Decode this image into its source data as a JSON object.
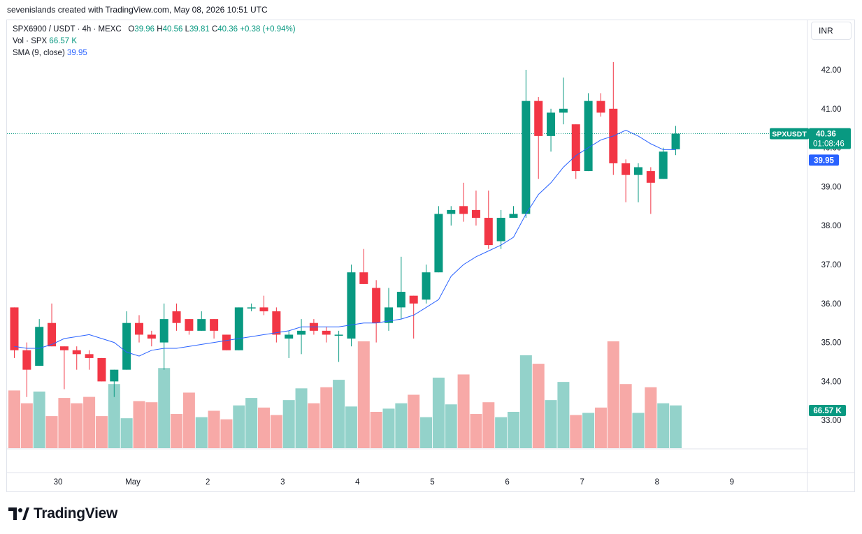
{
  "header": {
    "credit": "sevenislands created with TradingView.com, May 08, 2026 10:51 UTC"
  },
  "legend": {
    "symbol": "SPX6900 / USDT · 4h · MEXC",
    "o_label": "O",
    "o_value": "39.96",
    "h_label": "H",
    "h_value": "40.56",
    "l_label": "L",
    "l_value": "39.81",
    "c_label": "C",
    "c_value": "40.36",
    "change": "+0.38 (+0.94%)",
    "vol_label": "Vol · SPX",
    "vol_value": "66.57 K",
    "sma_label": "SMA (9, close)",
    "sma_value": "39.95"
  },
  "currency": "INR",
  "brand": {
    "name": "TradingView"
  },
  "colors": {
    "up": "#089981",
    "down": "#f23645",
    "up_vol": "#93d2ca",
    "down_vol": "#f7a9a7",
    "sma": "#2962ff"
  },
  "chart_data": {
    "type": "candlestick",
    "interval": "4h",
    "y_ticks": [
      "42.00",
      "41.00",
      "40.00",
      "39.00",
      "38.00",
      "37.00",
      "36.00",
      "35.00",
      "34.00",
      "33.00"
    ],
    "y_tick_values": [
      42,
      41,
      40,
      39,
      38,
      37,
      36,
      35,
      34,
      33
    ],
    "x_ticks": [
      {
        "label": "30",
        "index": 3.5
      },
      {
        "label": "May",
        "index": 9.5
      },
      {
        "label": "2",
        "index": 15.5
      },
      {
        "label": "3",
        "index": 21.5
      },
      {
        "label": "4",
        "index": 27.5
      },
      {
        "label": "5",
        "index": 33.5
      },
      {
        "label": "6",
        "index": 39.5
      },
      {
        "label": "7",
        "index": 45.5
      },
      {
        "label": "8",
        "index": 51.5
      },
      {
        "label": "9",
        "index": 57.5
      }
    ],
    "ohlc": [
      [
        35.9,
        35.9,
        34.6,
        34.8
      ],
      [
        34.8,
        35.0,
        33.6,
        34.3
      ],
      [
        34.4,
        35.6,
        34.4,
        35.4
      ],
      [
        35.5,
        36.0,
        34.9,
        34.9
      ],
      [
        34.9,
        34.9,
        33.8,
        34.8
      ],
      [
        34.8,
        34.9,
        34.3,
        34.7
      ],
      [
        34.7,
        34.8,
        34.3,
        34.6
      ],
      [
        34.6,
        34.6,
        34.0,
        34.0
      ],
      [
        34.0,
        34.3,
        33.6,
        34.3
      ],
      [
        34.3,
        35.8,
        34.3,
        35.5
      ],
      [
        35.5,
        35.7,
        35.0,
        35.2
      ],
      [
        35.2,
        35.3,
        34.9,
        35.1
      ],
      [
        35.0,
        36.0,
        34.3,
        35.6
      ],
      [
        35.8,
        36.0,
        35.3,
        35.5
      ],
      [
        35.6,
        35.6,
        35.2,
        35.3
      ],
      [
        35.3,
        35.8,
        35.3,
        35.6
      ],
      [
        35.6,
        35.6,
        35.1,
        35.3
      ],
      [
        35.2,
        35.2,
        34.8,
        34.8
      ],
      [
        34.8,
        35.9,
        34.8,
        35.9
      ],
      [
        35.9,
        36.0,
        35.8,
        35.9
      ],
      [
        35.9,
        36.2,
        35.7,
        35.8
      ],
      [
        35.8,
        35.9,
        35.0,
        35.2
      ],
      [
        35.1,
        35.3,
        34.6,
        35.2
      ],
      [
        35.2,
        35.6,
        34.7,
        35.3
      ],
      [
        35.5,
        35.6,
        35.2,
        35.3
      ],
      [
        35.3,
        35.4,
        35.0,
        35.2
      ],
      [
        35.2,
        35.3,
        34.5,
        35.2
      ],
      [
        35.1,
        37.0,
        34.9,
        36.8
      ],
      [
        36.8,
        37.4,
        36.5,
        36.5
      ],
      [
        36.4,
        36.6,
        35.0,
        35.5
      ],
      [
        35.5,
        36.4,
        35.3,
        35.9
      ],
      [
        35.9,
        37.2,
        35.6,
        36.3
      ],
      [
        36.2,
        36.2,
        35.1,
        36.0
      ],
      [
        36.1,
        37.0,
        36.0,
        36.8
      ],
      [
        36.8,
        38.5,
        36.8,
        38.3
      ],
      [
        38.3,
        38.5,
        38.0,
        38.4
      ],
      [
        38.5,
        39.1,
        38.1,
        38.3
      ],
      [
        38.4,
        38.9,
        38.0,
        38.2
      ],
      [
        38.2,
        38.9,
        37.4,
        37.5
      ],
      [
        37.6,
        38.4,
        37.4,
        38.2
      ],
      [
        38.2,
        38.5,
        38.2,
        38.3
      ],
      [
        38.3,
        42.0,
        38.2,
        41.2
      ],
      [
        41.2,
        41.3,
        39.2,
        40.3
      ],
      [
        40.3,
        41.0,
        39.9,
        40.9
      ],
      [
        40.9,
        41.8,
        40.6,
        41.0
      ],
      [
        40.6,
        40.6,
        39.2,
        39.4
      ],
      [
        39.4,
        41.4,
        39.4,
        41.2
      ],
      [
        41.2,
        41.4,
        40.8,
        40.9
      ],
      [
        41.0,
        42.2,
        39.3,
        39.6
      ],
      [
        39.6,
        39.7,
        38.6,
        39.3
      ],
      [
        39.3,
        39.6,
        38.6,
        39.5
      ],
      [
        39.4,
        39.5,
        38.3,
        39.1
      ],
      [
        39.2,
        40.0,
        39.2,
        39.9
      ],
      [
        39.96,
        40.56,
        39.81,
        40.36
      ]
    ],
    "volume_relative": [
      0.54,
      0.42,
      0.53,
      0.3,
      0.47,
      0.42,
      0.48,
      0.3,
      0.6,
      0.28,
      0.44,
      0.43,
      0.75,
      0.32,
      0.52,
      0.29,
      0.35,
      0.27,
      0.4,
      0.47,
      0.38,
      0.31,
      0.45,
      0.56,
      0.42,
      0.57,
      0.64,
      0.39,
      1.0,
      0.34,
      0.37,
      0.42,
      0.5,
      0.29,
      0.66,
      0.41,
      0.69,
      0.32,
      0.43,
      0.29,
      0.34,
      0.87,
      0.79,
      0.45,
      0.62,
      0.31,
      0.33,
      0.38,
      1.0,
      0.6,
      0.33,
      0.57,
      0.42,
      0.4
    ],
    "sma_9_close": [
      34.9,
      34.85,
      34.85,
      34.95,
      35.1,
      35.15,
      35.2,
      35.1,
      35.0,
      34.75,
      34.65,
      34.8,
      34.85,
      34.85,
      34.9,
      34.95,
      35.0,
      35.05,
      35.1,
      35.15,
      35.2,
      35.25,
      35.3,
      35.4,
      35.4,
      35.4,
      35.4,
      35.45,
      35.5,
      35.5,
      35.55,
      35.6,
      35.7,
      35.9,
      36.1,
      36.7,
      37.0,
      37.2,
      37.35,
      37.5,
      37.7,
      38.3,
      38.8,
      39.1,
      39.5,
      39.8,
      40.0,
      40.2,
      40.3,
      40.45,
      40.3,
      40.1,
      39.95,
      39.95
    ],
    "price_label": {
      "symbol": "SPXUSDT",
      "value": "40.36",
      "countdown": "01:08:46",
      "value_num": 40.36
    },
    "sma_label": {
      "value": "39.95",
      "value_num": 39.95
    },
    "volume_label": {
      "value": "66.57 K"
    }
  }
}
